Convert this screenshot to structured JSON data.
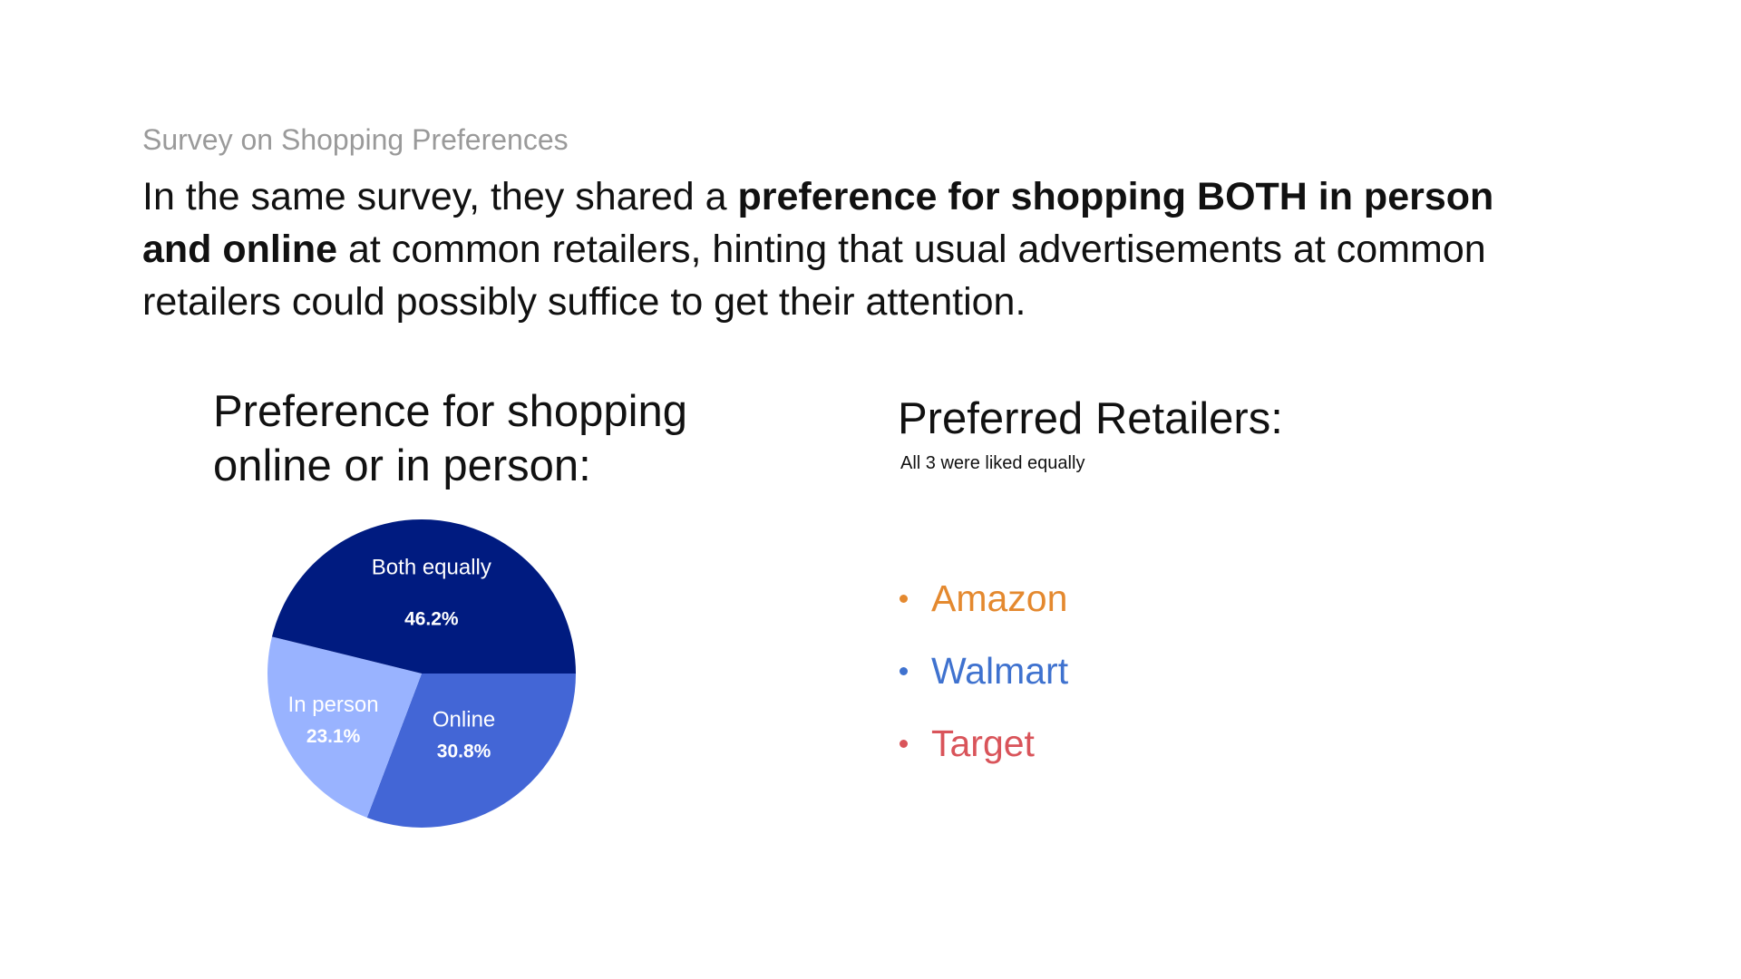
{
  "slide": {
    "eyebrow": "Survey on Shopping Preferences",
    "headline": {
      "part1": "In the same survey, they shared a ",
      "bold1": "preference for shopping BOTH in person and online",
      "part2": " at common retailers, hinting that usual advertisements at common retailers could possibly suffice to get their attention."
    }
  },
  "chart_data": {
    "type": "pie",
    "title": "Preference for shopping online or in person:",
    "categories": [
      "Both equally",
      "Online",
      "In person"
    ],
    "values": [
      46.2,
      30.8,
      23.1
    ],
    "value_labels": [
      "46.2%",
      "30.8%",
      "23.1%"
    ],
    "colors": [
      "#001b80",
      "#4366d6",
      "#99b3ff"
    ],
    "legend": "none"
  },
  "retailers": {
    "title": "Preferred Retailers:",
    "subtitle": "All 3 were liked equally",
    "items": [
      {
        "label": "Amazon",
        "color": "#e4892f"
      },
      {
        "label": "Walmart",
        "color": "#3f72cf"
      },
      {
        "label": "Target",
        "color": "#d9545a"
      }
    ]
  }
}
